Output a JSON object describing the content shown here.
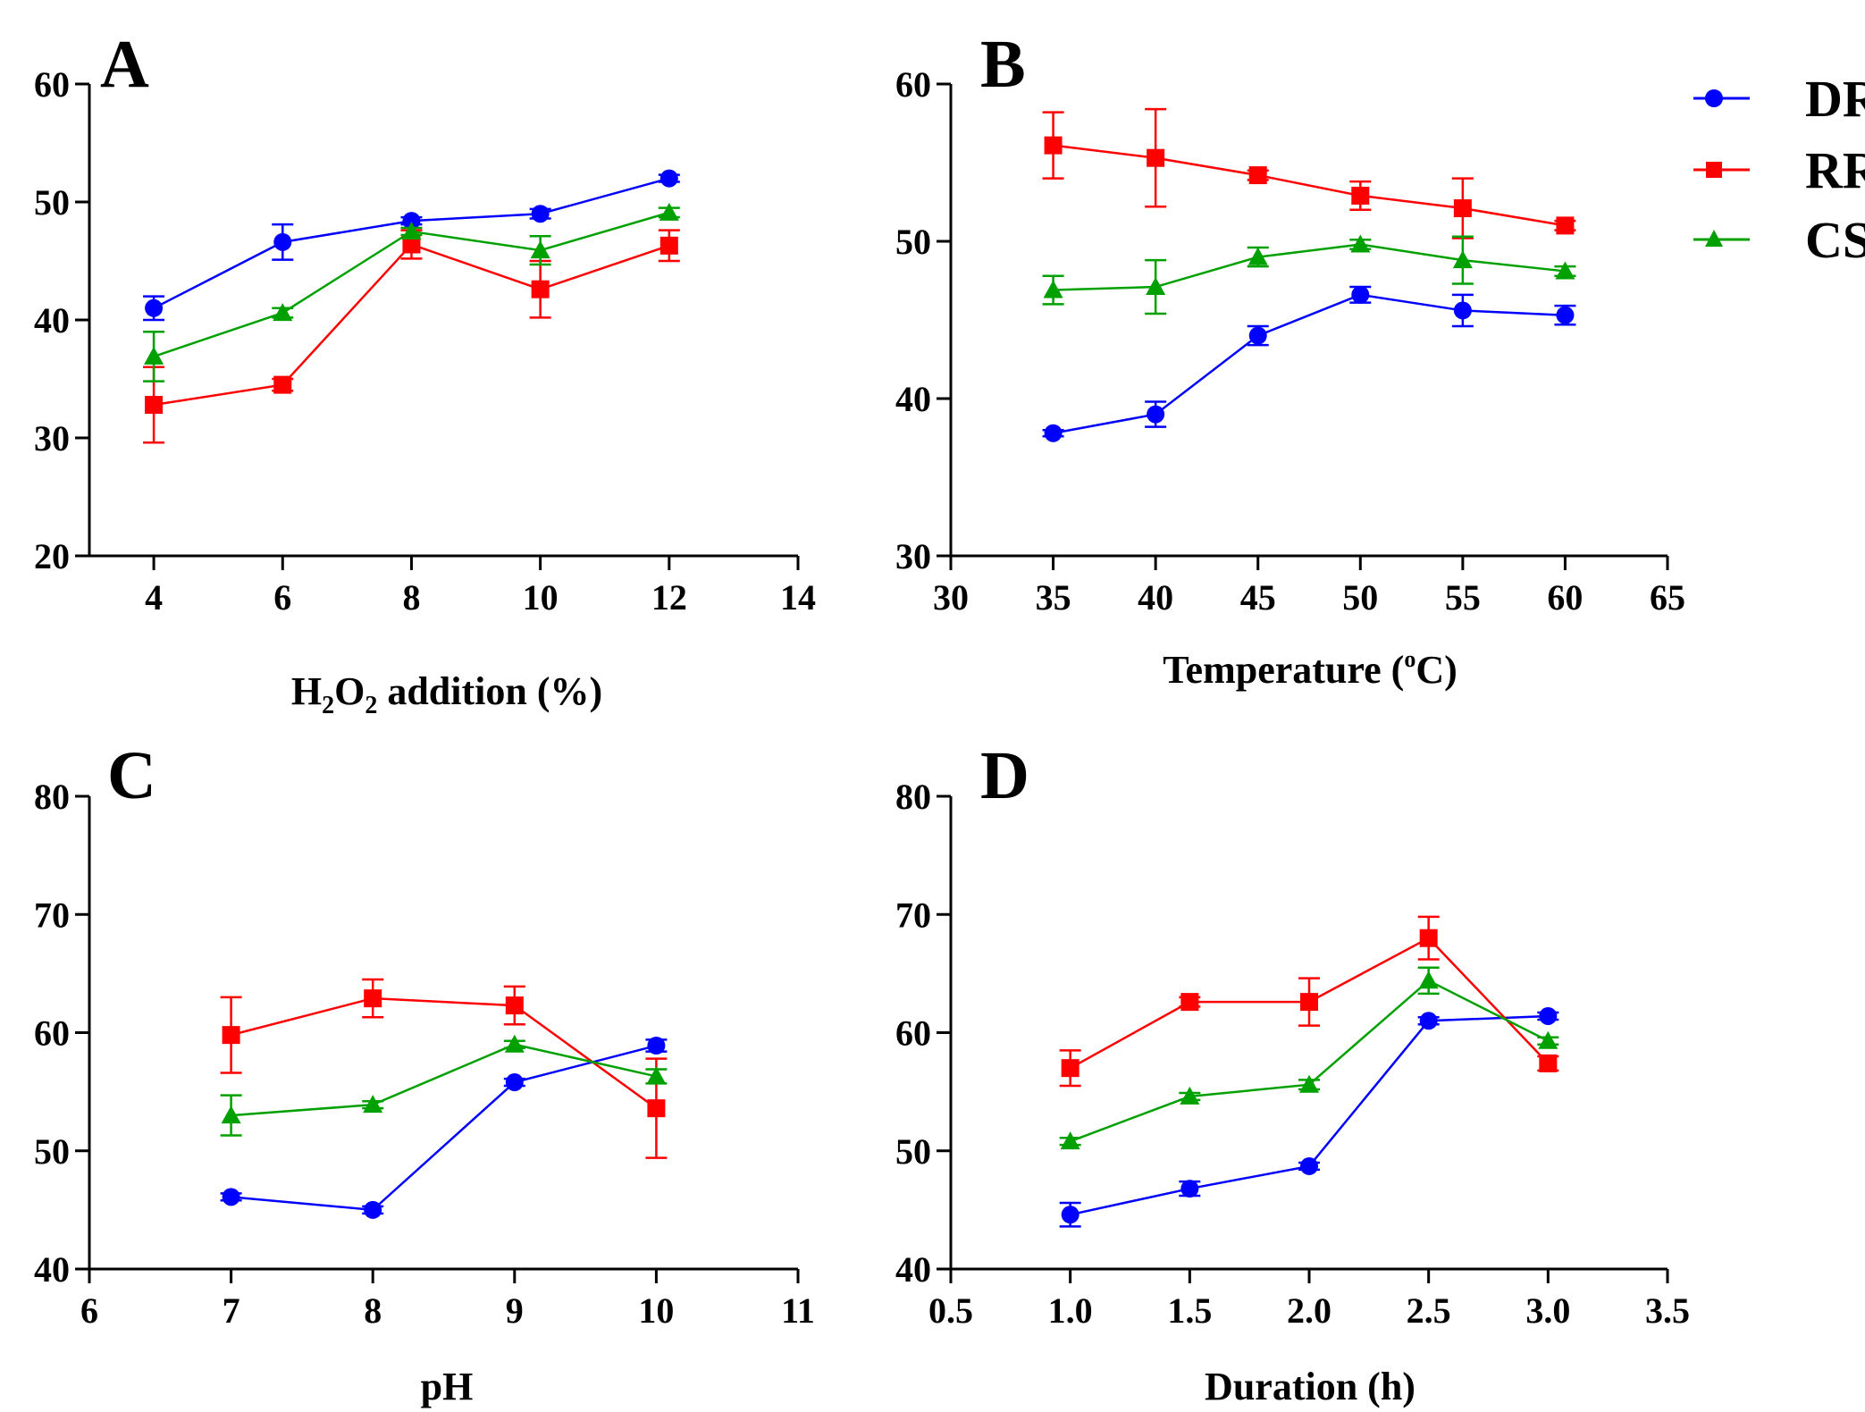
{
  "figure": {
    "legend": [
      {
        "name": "DR",
        "color": "#0000ff",
        "marker": "circle"
      },
      {
        "name": "RR",
        "color": "#ff0000",
        "marker": "square"
      },
      {
        "name": "CS",
        "color": "#00a000",
        "marker": "triangle"
      }
    ]
  },
  "chart_data": [
    {
      "panel": "A",
      "type": "line",
      "xlabel_parts": [
        "H",
        "2",
        "O",
        "2",
        " addition (%)"
      ],
      "ylabel": "",
      "xlim": [
        3,
        14
      ],
      "ylim": [
        20,
        60
      ],
      "xticks": [
        4,
        6,
        8,
        10,
        12,
        14
      ],
      "xtick_labels": [
        "4",
        "6",
        "8",
        "10",
        "12",
        "14"
      ],
      "yticks": [
        20,
        30,
        40,
        50,
        60
      ],
      "ytick_labels": [
        "20",
        "30",
        "40",
        "50",
        "60"
      ],
      "x": [
        4,
        6,
        8,
        10,
        12
      ],
      "series": [
        {
          "name": "DR",
          "values": [
            41.0,
            46.6,
            48.4,
            49.0,
            52.0
          ],
          "errors": [
            1.0,
            1.5,
            0.3,
            0.4,
            0.3
          ]
        },
        {
          "name": "RR",
          "values": [
            32.8,
            34.5,
            46.4,
            42.6,
            46.3
          ],
          "errors": [
            3.2,
            0.5,
            1.2,
            2.4,
            1.3
          ]
        },
        {
          "name": "CS",
          "values": [
            36.9,
            40.6,
            47.5,
            45.9,
            49.1
          ],
          "errors": [
            2.1,
            0.4,
            0.3,
            1.2,
            0.4
          ]
        }
      ]
    },
    {
      "panel": "B",
      "type": "line",
      "xlabel_parts": [
        "Temperature (",
        "o",
        "C)"
      ],
      "ylabel": "",
      "xlim": [
        30,
        65
      ],
      "ylim": [
        30,
        60
      ],
      "xticks": [
        30,
        35,
        40,
        45,
        50,
        55,
        60,
        65
      ],
      "xtick_labels": [
        "30",
        "35",
        "40",
        "45",
        "50",
        "55",
        "60",
        "65"
      ],
      "yticks": [
        30,
        40,
        50,
        60
      ],
      "ytick_labels": [
        "30",
        "40",
        "50",
        "60"
      ],
      "x": [
        35,
        40,
        45,
        50,
        55,
        60
      ],
      "series": [
        {
          "name": "DR",
          "values": [
            37.8,
            39.0,
            44.0,
            46.6,
            45.6,
            45.3
          ],
          "errors": [
            0.2,
            0.8,
            0.6,
            0.5,
            1.0,
            0.6
          ]
        },
        {
          "name": "RR",
          "values": [
            56.1,
            55.3,
            54.2,
            52.9,
            52.1,
            51.0
          ],
          "errors": [
            2.1,
            3.1,
            0.3,
            0.9,
            1.9,
            0.3
          ]
        },
        {
          "name": "CS",
          "values": [
            46.9,
            47.1,
            49.0,
            49.8,
            48.8,
            48.1
          ],
          "errors": [
            0.9,
            1.7,
            0.6,
            0.3,
            1.5,
            0.3
          ]
        }
      ]
    },
    {
      "panel": "C",
      "type": "line",
      "xlabel_parts": [
        "pH"
      ],
      "ylabel": "",
      "xlim": [
        6,
        11
      ],
      "ylim": [
        40,
        80
      ],
      "xticks": [
        6,
        7,
        8,
        9,
        10,
        11
      ],
      "xtick_labels": [
        "6",
        "7",
        "8",
        "9",
        "10",
        "11"
      ],
      "yticks": [
        40,
        50,
        60,
        70,
        80
      ],
      "ytick_labels": [
        "40",
        "50",
        "60",
        "70",
        "80"
      ],
      "x": [
        7,
        8,
        9,
        10
      ],
      "series": [
        {
          "name": "DR",
          "values": [
            46.1,
            45.0,
            55.8,
            58.9
          ],
          "errors": [
            0.3,
            0.3,
            0.3,
            0.5
          ]
        },
        {
          "name": "RR",
          "values": [
            59.8,
            62.9,
            62.3,
            53.6
          ],
          "errors": [
            3.2,
            1.6,
            1.6,
            4.2
          ]
        },
        {
          "name": "CS",
          "values": [
            53.0,
            53.9,
            59.0,
            56.3
          ],
          "errors": [
            1.7,
            0.3,
            0.3,
            0.6
          ]
        }
      ]
    },
    {
      "panel": "D",
      "type": "line",
      "xlabel_parts": [
        "Duration (h)"
      ],
      "ylabel": "",
      "xlim": [
        0.5,
        3.5
      ],
      "ylim": [
        40,
        80
      ],
      "xticks": [
        0.5,
        1.0,
        1.5,
        2.0,
        2.5,
        3.0,
        3.5
      ],
      "xtick_labels": [
        "0.5",
        "1.0",
        "1.5",
        "2.0",
        "2.5",
        "3.0",
        "3.5"
      ],
      "yticks": [
        40,
        50,
        60,
        70,
        80
      ],
      "ytick_labels": [
        "40",
        "50",
        "60",
        "70",
        "80"
      ],
      "x": [
        1.0,
        1.5,
        2.0,
        2.5,
        3.0
      ],
      "series": [
        {
          "name": "DR",
          "values": [
            44.6,
            46.8,
            48.7,
            61.0,
            61.4
          ],
          "errors": [
            1.0,
            0.6,
            0.3,
            0.3,
            0.3
          ]
        },
        {
          "name": "RR",
          "values": [
            57.0,
            62.6,
            62.6,
            68.0,
            57.4
          ],
          "errors": [
            1.5,
            0.4,
            2.0,
            1.8,
            0.6
          ]
        },
        {
          "name": "CS",
          "values": [
            50.8,
            54.6,
            55.6,
            64.4,
            59.3
          ],
          "errors": [
            0.3,
            0.3,
            0.4,
            1.1,
            0.3
          ]
        }
      ]
    }
  ]
}
